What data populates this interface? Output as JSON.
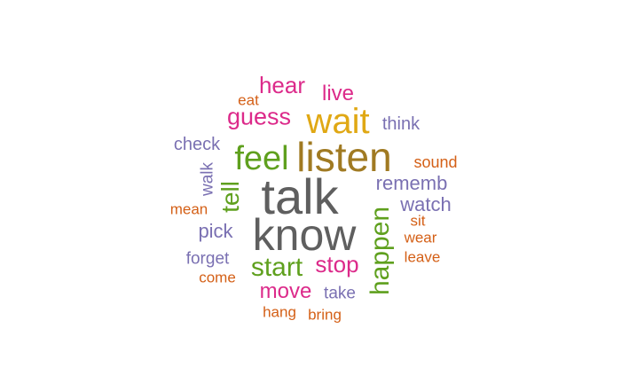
{
  "word_cloud": {
    "colors": {
      "gray": "#5f5f5f",
      "olive": "#a07a22",
      "gold": "#e0a814",
      "green": "#5fa01e",
      "magenta": "#dc2a8a",
      "purple": "#7a70b2",
      "orange": "#d46017"
    },
    "words": [
      {
        "id": "talk",
        "text": "talk",
        "color": "#5f5f5f"
      },
      {
        "id": "know",
        "text": "know",
        "color": "#5f5f5f"
      },
      {
        "id": "listen",
        "text": "listen",
        "color": "#a07a22"
      },
      {
        "id": "wait",
        "text": "wait",
        "color": "#e0a814"
      },
      {
        "id": "feel",
        "text": "feel",
        "color": "#5fa01e"
      },
      {
        "id": "happen",
        "text": "happen",
        "color": "#5fa01e"
      },
      {
        "id": "start",
        "text": "start",
        "color": "#5fa01e"
      },
      {
        "id": "guess",
        "text": "guess",
        "color": "#dc2a8a"
      },
      {
        "id": "hear",
        "text": "hear",
        "color": "#dc2a8a"
      },
      {
        "id": "tell",
        "text": "tell",
        "color": "#5fa01e"
      },
      {
        "id": "stop",
        "text": "stop",
        "color": "#dc2a8a"
      },
      {
        "id": "live",
        "text": "live",
        "color": "#dc2a8a"
      },
      {
        "id": "move",
        "text": "move",
        "color": "#dc2a8a"
      },
      {
        "id": "rememb",
        "text": "rememb",
        "color": "#7a70b2"
      },
      {
        "id": "watch",
        "text": "watch",
        "color": "#7a70b2"
      },
      {
        "id": "pick",
        "text": "pick",
        "color": "#7a70b2"
      },
      {
        "id": "think",
        "text": "think",
        "color": "#7a70b2"
      },
      {
        "id": "check",
        "text": "check",
        "color": "#7a70b2"
      },
      {
        "id": "walk",
        "text": "walk",
        "color": "#7a70b2"
      },
      {
        "id": "take",
        "text": "take",
        "color": "#7a70b2"
      },
      {
        "id": "forget",
        "text": "forget",
        "color": "#7a70b2"
      },
      {
        "id": "sound",
        "text": "sound",
        "color": "#d46017"
      },
      {
        "id": "mean",
        "text": "mean",
        "color": "#d46017"
      },
      {
        "id": "sit",
        "text": "sit",
        "color": "#d46017"
      },
      {
        "id": "wear",
        "text": "wear",
        "color": "#d46017"
      },
      {
        "id": "leave",
        "text": "leave",
        "color": "#d46017"
      },
      {
        "id": "come",
        "text": "come",
        "color": "#d46017"
      },
      {
        "id": "eat",
        "text": "eat",
        "color": "#d46017"
      },
      {
        "id": "hang",
        "text": "hang",
        "color": "#d46017"
      },
      {
        "id": "bring",
        "text": "bring",
        "color": "#d46017"
      }
    ]
  }
}
